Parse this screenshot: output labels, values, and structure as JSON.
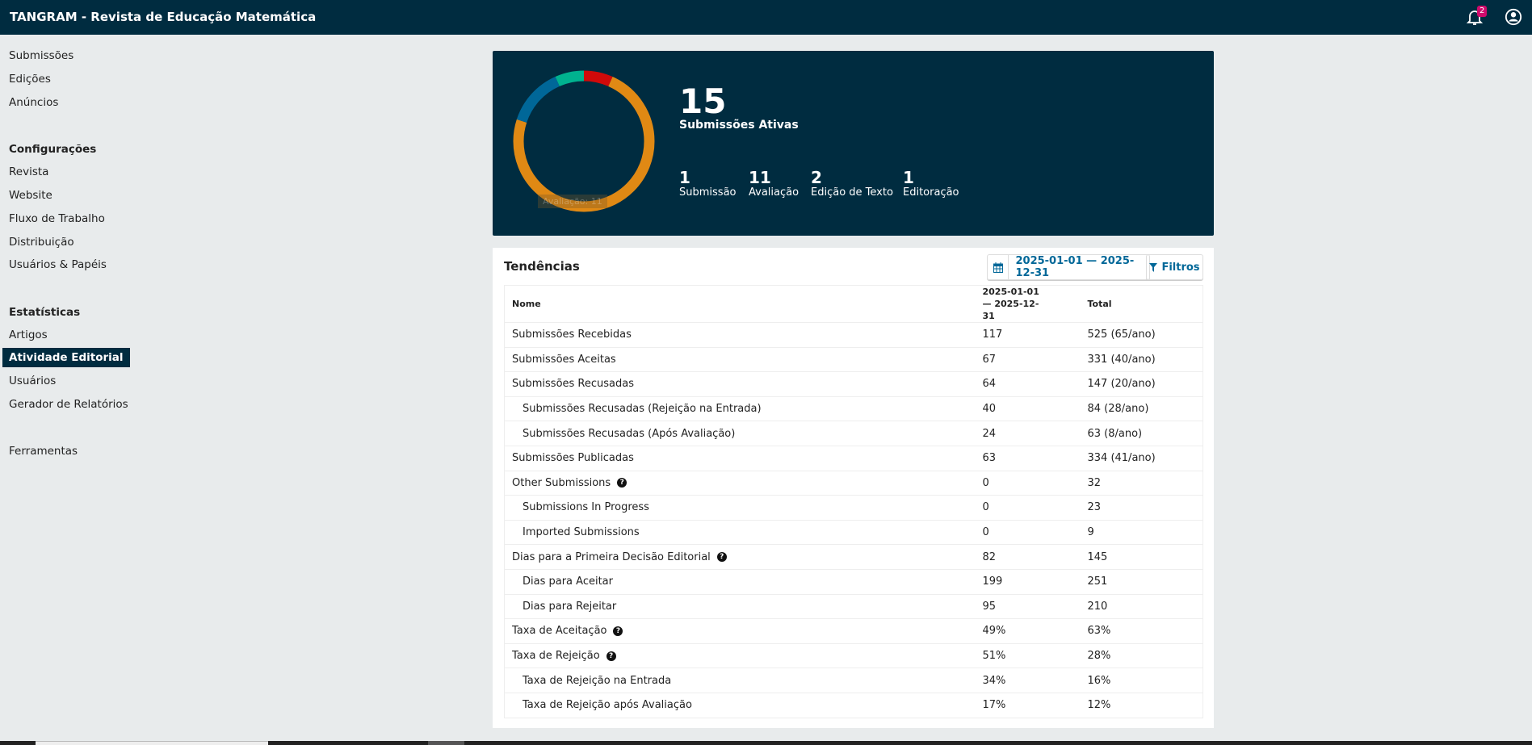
{
  "header": {
    "title": "TANGRAM - Revista de Educação Matemática",
    "notifications": "2"
  },
  "sidebar": {
    "items": [
      "Submissões",
      "Edições",
      "Anúncios"
    ],
    "config_heading": "Configurações",
    "config_items": [
      "Revista",
      "Website",
      "Fluxo de Trabalho",
      "Distribuição",
      "Usuários & Papéis"
    ],
    "stats_heading": "Estatísticas",
    "stats_items": [
      "Artigos",
      "Atividade Editorial",
      "Usuários",
      "Gerador de Relatórios"
    ],
    "tools": "Ferramentas"
  },
  "summary": {
    "total": "15",
    "total_label": "Submissões Ativas",
    "tooltip": "Avaliação: 11",
    "stages": [
      {
        "count": "1",
        "label": "Submissão",
        "value": 1,
        "color": "#d00a0a"
      },
      {
        "count": "11",
        "label": "Avaliação",
        "value": 11,
        "color": "#e08914"
      },
      {
        "count": "2",
        "label": "Edição de Texto",
        "value": 2,
        "color": "#006798"
      },
      {
        "count": "1",
        "label": "Editoração",
        "value": 1,
        "color": "#00b28f"
      }
    ]
  },
  "trends": {
    "title": "Tendências",
    "date_range": "2025-01-01 — 2025-12-31",
    "filters": "Filtros",
    "columns": [
      "Nome",
      "2025-01-01 — 2025-12-31",
      "Total"
    ],
    "rows": [
      {
        "name": "Submissões Recebidas",
        "period": "117",
        "total": "525 (65/ano)"
      },
      {
        "name": "Submissões Aceitas",
        "period": "67",
        "total": "331 (40/ano)"
      },
      {
        "name": "Submissões Recusadas",
        "period": "64",
        "total": "147 (20/ano)"
      },
      {
        "name": "Submissões Recusadas (Rejeição na Entrada)",
        "period": "40",
        "total": "84 (28/ano)",
        "indent": true
      },
      {
        "name": "Submissões Recusadas (Após Avaliação)",
        "period": "24",
        "total": "63 (8/ano)",
        "indent": true
      },
      {
        "name": "Submissões Publicadas",
        "period": "63",
        "total": "334 (41/ano)"
      },
      {
        "name": "Other Submissions",
        "period": "0",
        "total": "32",
        "help": true
      },
      {
        "name": "Submissions In Progress",
        "period": "0",
        "total": "23",
        "indent": true
      },
      {
        "name": "Imported Submissions",
        "period": "0",
        "total": "9",
        "indent": true
      },
      {
        "name": "Dias para a Primeira Decisão Editorial",
        "period": "82",
        "total": "145",
        "help": true
      },
      {
        "name": "Dias para Aceitar",
        "period": "199",
        "total": "251",
        "indent": true
      },
      {
        "name": "Dias para Rejeitar",
        "period": "95",
        "total": "210",
        "indent": true
      },
      {
        "name": "Taxa de Aceitação",
        "period": "49%",
        "total": "63%",
        "help": true
      },
      {
        "name": "Taxa de Rejeição",
        "period": "51%",
        "total": "28%",
        "help": true
      },
      {
        "name": "Taxa de Rejeição na Entrada",
        "period": "34%",
        "total": "16%",
        "indent": true
      },
      {
        "name": "Taxa de Rejeição após Avaliação",
        "period": "17%",
        "total": "12%",
        "indent": true
      }
    ]
  }
}
